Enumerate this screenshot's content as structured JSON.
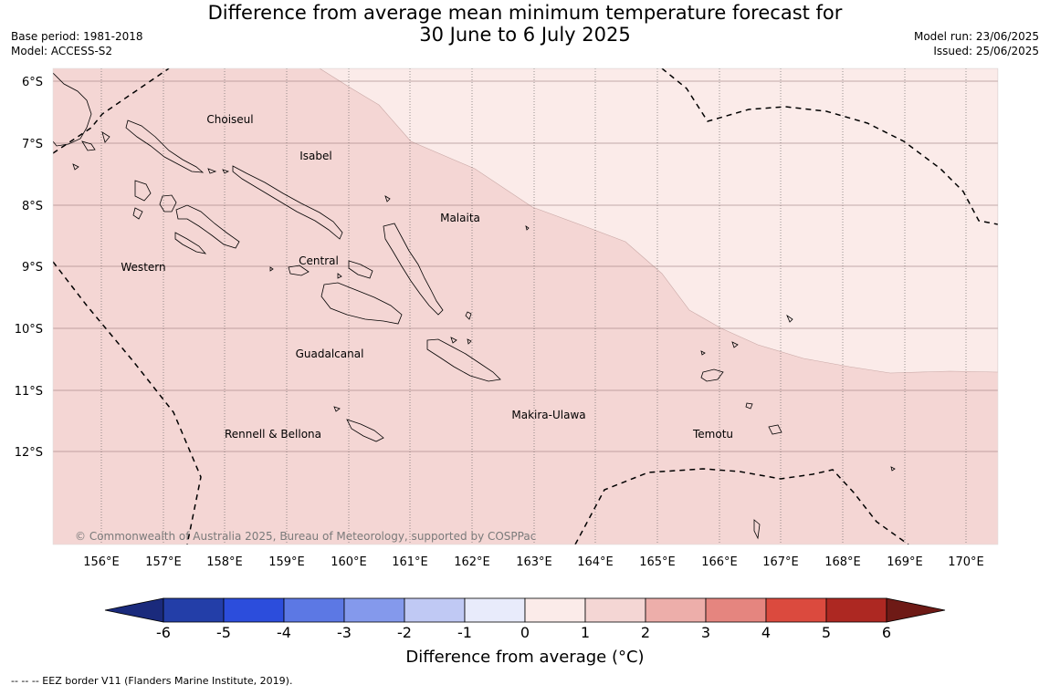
{
  "header": {
    "title_line1": "Difference from average mean minimum temperature forecast for",
    "title_line2": "30 June to 6 July 2025",
    "base_period": "Base period: 1981-2018",
    "model": "Model: ACCESS-S2",
    "model_run": "Model run: 23/06/2025",
    "issued": "Issued: 25/06/2025"
  },
  "map": {
    "lat_labels": [
      "6°S",
      "7°S",
      "8°S",
      "9°S",
      "10°S",
      "11°S",
      "12°S"
    ],
    "lon_labels": [
      "156°E",
      "157°E",
      "158°E",
      "159°E",
      "160°E",
      "161°E",
      "162°E",
      "163°E",
      "164°E",
      "165°E",
      "166°E",
      "167°E",
      "168°E",
      "169°E",
      "170°E"
    ],
    "region_labels": [
      "Choiseul",
      "Isabel",
      "Malaita",
      "Western",
      "Central",
      "Guadalcanal",
      "Makira-Ulawa",
      "Rennell & Bellona",
      "Temotu"
    ],
    "copyright": "© Commonwealth of Australia 2025, Bureau of Meteorology, supported by COSPPac",
    "colors": {
      "anomaly_1_2": "#f4d6d4",
      "anomaly_0_1": "#fbebe9",
      "eez": "#000000"
    }
  },
  "colorbar": {
    "ticks": [
      "-6",
      "-5",
      "-4",
      "-3",
      "-2",
      "-1",
      "0",
      "1",
      "2",
      "3",
      "4",
      "5",
      "6"
    ],
    "colors": [
      "#1a2a7c",
      "#233ea8",
      "#2c4ddc",
      "#5c78e4",
      "#8499ec",
      "#c0c9f4",
      "#e8ebfb",
      "#fbebe9",
      "#f4d6d4",
      "#edaeaa",
      "#e5857f",
      "#db4a3e",
      "#ad2822",
      "#6e1a16"
    ],
    "label": "Difference from average (°C)"
  },
  "footnote": "--  --  -- EEZ border V11 (Flanders Marine Institute, 2019)."
}
